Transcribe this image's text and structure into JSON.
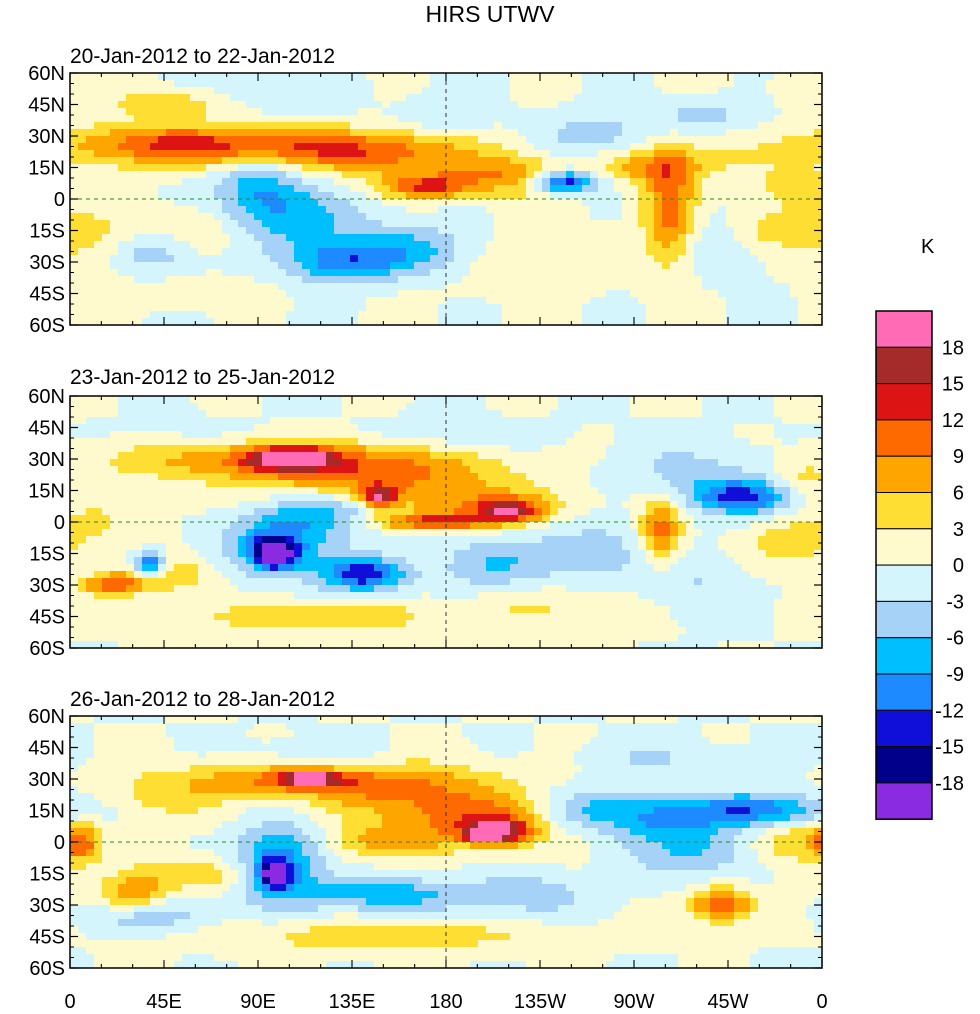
{
  "chart_data": {
    "type": "heatmap",
    "title": "HIRS UTWV",
    "unit_label": "K",
    "colorbar": {
      "levels": [
        "18",
        "15",
        "12",
        "9",
        "6",
        "3",
        "0",
        "-3",
        "-6",
        "-9",
        "-12",
        "-15",
        "-18"
      ],
      "colors": [
        "#ff6bb5",
        "#a52a2a",
        "#dc1414",
        "#ff6a00",
        "#ffa500",
        "#ffde33",
        "#fffacd",
        "#d4f5fc",
        "#a7d2f7",
        "#00bfff",
        "#1e8aff",
        "#0f0fd9",
        "#00008b",
        "#8a2be2"
      ]
    },
    "x_ticks": [
      "0",
      "45E",
      "90E",
      "135E",
      "180",
      "135W",
      "90W",
      "45W",
      "0"
    ],
    "y_ticks": [
      "60N",
      "45N",
      "30N",
      "15N",
      "0",
      "15S",
      "30S",
      "45S",
      "60S"
    ],
    "xlim": [
      0,
      360
    ],
    "ylim": [
      -60,
      60
    ],
    "panels": [
      {
        "subtitle": "20-Jan-2012 to 22-Jan-2012",
        "blobs": [
          {
            "lon": 5,
            "lat": 50,
            "rlon": 40,
            "rlat": 10,
            "v": 1.5
          },
          {
            "lon": 50,
            "lat": 45,
            "rlon": 25,
            "rlat": 6,
            "v": 5
          },
          {
            "lon": 40,
            "lat": 26,
            "rlon": 50,
            "rlat": 10,
            "v": 8
          },
          {
            "lon": 100,
            "lat": 25,
            "rlon": 70,
            "rlat": 9,
            "v": 9
          },
          {
            "lon": 150,
            "lat": 20,
            "rlon": 45,
            "rlat": 10,
            "v": 7
          },
          {
            "lon": 172,
            "lat": 6,
            "rlon": 22,
            "rlat": 6,
            "v": 12
          },
          {
            "lon": 200,
            "lat": 12,
            "rlon": 20,
            "rlat": 8,
            "v": 6
          },
          {
            "lon": 220,
            "lat": 10,
            "rlon": 20,
            "rlat": 12,
            "v": 4
          },
          {
            "lon": 287,
            "lat": -5,
            "rlon": 12,
            "rlat": 25,
            "v": 11
          },
          {
            "lon": 275,
            "lat": 15,
            "rlon": 25,
            "rlat": 8,
            "v": 6
          },
          {
            "lon": 300,
            "lat": 20,
            "rlon": 30,
            "rlat": 10,
            "v": 3
          },
          {
            "lon": 345,
            "lat": 5,
            "rlon": 25,
            "rlat": 12,
            "v": 4
          },
          {
            "lon": 10,
            "lat": -20,
            "rlon": 25,
            "rlat": 15,
            "v": 4
          },
          {
            "lon": 60,
            "lat": -15,
            "rlon": 30,
            "rlat": 12,
            "v": 3
          },
          {
            "lon": 60,
            "lat": -45,
            "rlon": 30,
            "rlat": 6,
            "v": 3
          },
          {
            "lon": 200,
            "lat": -30,
            "rlon": 60,
            "rlat": 15,
            "v": 2
          },
          {
            "lon": 330,
            "lat": -15,
            "rlon": 20,
            "rlat": 10,
            "v": 5
          },
          {
            "lon": 250,
            "lat": 30,
            "rlon": 25,
            "rlat": 10,
            "v": -5
          },
          {
            "lon": 237,
            "lat": 8,
            "rlon": 15,
            "rlat": 5,
            "v": -15
          },
          {
            "lon": 90,
            "lat": 5,
            "rlon": 20,
            "rlat": 15,
            "v": -8
          },
          {
            "lon": 110,
            "lat": -10,
            "rlon": 30,
            "rlat": 15,
            "v": -7
          },
          {
            "lon": 130,
            "lat": -30,
            "rlon": 25,
            "rlat": 10,
            "v": -10
          },
          {
            "lon": 165,
            "lat": -25,
            "rlon": 30,
            "rlat": 12,
            "v": -8
          },
          {
            "lon": 40,
            "lat": -25,
            "rlon": 20,
            "rlat": 10,
            "v": -6
          },
          {
            "lon": 315,
            "lat": -20,
            "rlon": 20,
            "rlat": 15,
            "v": -4
          },
          {
            "lon": 300,
            "lat": 40,
            "rlon": 30,
            "rlat": 8,
            "v": -4
          },
          {
            "lon": 180,
            "lat": 40,
            "rlon": 20,
            "rlat": 8,
            "v": -3
          },
          {
            "lon": 100,
            "lat": 50,
            "rlon": 30,
            "rlat": 8,
            "v": -3
          }
        ]
      },
      {
        "subtitle": "23-Jan-2012 to 25-Jan-2012",
        "blobs": [
          {
            "lon": 100,
            "lat": 30,
            "rlon": 80,
            "rlat": 10,
            "v": 9
          },
          {
            "lon": 105,
            "lat": 30,
            "rlon": 20,
            "rlat": 5,
            "v": 15
          },
          {
            "lon": 150,
            "lat": 20,
            "rlon": 60,
            "rlat": 12,
            "v": 8
          },
          {
            "lon": 148,
            "lat": 12,
            "rlon": 8,
            "rlat": 5,
            "v": 14
          },
          {
            "lon": 200,
            "lat": 8,
            "rlon": 40,
            "rlat": 8,
            "v": 7
          },
          {
            "lon": 175,
            "lat": 0,
            "rlon": 30,
            "rlat": 4,
            "v": 12
          },
          {
            "lon": 210,
            "lat": 5,
            "rlon": 15,
            "rlat": 5,
            "v": 12
          },
          {
            "lon": 283,
            "lat": -5,
            "rlon": 10,
            "rlat": 15,
            "v": 11
          },
          {
            "lon": 15,
            "lat": 0,
            "rlon": 25,
            "rlat": 15,
            "v": 3
          },
          {
            "lon": 20,
            "lat": -30,
            "rlon": 15,
            "rlat": 5,
            "v": 10
          },
          {
            "lon": 45,
            "lat": -25,
            "rlon": 25,
            "rlat": 8,
            "v": 6
          },
          {
            "lon": 120,
            "lat": -45,
            "rlon": 60,
            "rlat": 8,
            "v": 5
          },
          {
            "lon": 345,
            "lat": -10,
            "rlon": 20,
            "rlat": 10,
            "v": 5
          },
          {
            "lon": 350,
            "lat": 20,
            "rlon": 15,
            "rlat": 10,
            "v": 4
          },
          {
            "lon": 230,
            "lat": -40,
            "rlon": 40,
            "rlat": 10,
            "v": 3
          },
          {
            "lon": 100,
            "lat": -10,
            "rlon": 25,
            "rlat": 15,
            "v": -10
          },
          {
            "lon": 98,
            "lat": -15,
            "rlon": 10,
            "rlat": 7,
            "v": -17
          },
          {
            "lon": 140,
            "lat": -25,
            "rlon": 20,
            "rlat": 8,
            "v": -14
          },
          {
            "lon": 125,
            "lat": 5,
            "rlon": 25,
            "rlat": 10,
            "v": -7
          },
          {
            "lon": 38,
            "lat": -20,
            "rlon": 8,
            "rlat": 6,
            "v": -15
          },
          {
            "lon": 322,
            "lat": 12,
            "rlon": 25,
            "rlat": 8,
            "v": -13
          },
          {
            "lon": 300,
            "lat": 25,
            "rlon": 40,
            "rlat": 12,
            "v": -4
          },
          {
            "lon": 250,
            "lat": -15,
            "rlon": 30,
            "rlat": 15,
            "v": -5
          },
          {
            "lon": 200,
            "lat": -20,
            "rlon": 25,
            "rlat": 12,
            "v": -6
          },
          {
            "lon": 180,
            "lat": 40,
            "rlon": 40,
            "rlat": 8,
            "v": -3
          },
          {
            "lon": 60,
            "lat": 40,
            "rlon": 40,
            "rlat": 8,
            "v": -2
          },
          {
            "lon": 300,
            "lat": -30,
            "rlon": 20,
            "rlat": 15,
            "v": -3
          }
        ]
      },
      {
        "subtitle": "26-Jan-2012 to 28-Jan-2012",
        "blobs": [
          {
            "lon": 100,
            "lat": 30,
            "rlon": 55,
            "rlat": 8,
            "v": 8
          },
          {
            "lon": 115,
            "lat": 30,
            "rlon": 15,
            "rlat": 4,
            "v": 13
          },
          {
            "lon": 160,
            "lat": 25,
            "rlon": 50,
            "rlat": 12,
            "v": 8
          },
          {
            "lon": 195,
            "lat": 10,
            "rlon": 40,
            "rlat": 12,
            "v": 10
          },
          {
            "lon": 205,
            "lat": 5,
            "rlon": 15,
            "rlat": 6,
            "v": 14
          },
          {
            "lon": 198,
            "lat": 3,
            "rlon": 6,
            "rlat": 3,
            "v": 18
          },
          {
            "lon": 150,
            "lat": 0,
            "rlon": 25,
            "rlat": 8,
            "v": 7
          },
          {
            "lon": 5,
            "lat": 0,
            "rlon": 10,
            "rlat": 10,
            "v": 10
          },
          {
            "lon": 45,
            "lat": 20,
            "rlon": 30,
            "rlat": 10,
            "v": 4
          },
          {
            "lon": 30,
            "lat": -25,
            "rlon": 15,
            "rlat": 8,
            "v": 9
          },
          {
            "lon": 60,
            "lat": -15,
            "rlon": 30,
            "rlat": 8,
            "v": 6
          },
          {
            "lon": 150,
            "lat": -45,
            "rlon": 80,
            "rlat": 8,
            "v": 5
          },
          {
            "lon": 312,
            "lat": -30,
            "rlon": 15,
            "rlat": 8,
            "v": 12
          },
          {
            "lon": 345,
            "lat": 0,
            "rlon": 20,
            "rlat": 12,
            "v": 6
          },
          {
            "lon": 100,
            "lat": -10,
            "rlon": 20,
            "rlat": 18,
            "v": -11
          },
          {
            "lon": 98,
            "lat": -15,
            "rlon": 7,
            "rlat": 6,
            "v": -17
          },
          {
            "lon": 150,
            "lat": -25,
            "rlon": 40,
            "rlat": 8,
            "v": -8
          },
          {
            "lon": 330,
            "lat": 15,
            "rlon": 35,
            "rlat": 8,
            "v": -12
          },
          {
            "lon": 285,
            "lat": 10,
            "rlon": 25,
            "rlat": 10,
            "v": -7
          },
          {
            "lon": 250,
            "lat": 15,
            "rlon": 30,
            "rlat": 10,
            "v": -7
          },
          {
            "lon": 300,
            "lat": -5,
            "rlon": 30,
            "rlat": 12,
            "v": -6
          },
          {
            "lon": 40,
            "lat": -35,
            "rlon": 30,
            "rlat": 8,
            "v": -5
          },
          {
            "lon": 120,
            "lat": 40,
            "rlon": 30,
            "rlat": 8,
            "v": -3
          },
          {
            "lon": 220,
            "lat": -25,
            "rlon": 30,
            "rlat": 10,
            "v": -5
          },
          {
            "lon": 280,
            "lat": 40,
            "rlon": 30,
            "rlat": 8,
            "v": -3
          }
        ]
      }
    ]
  }
}
